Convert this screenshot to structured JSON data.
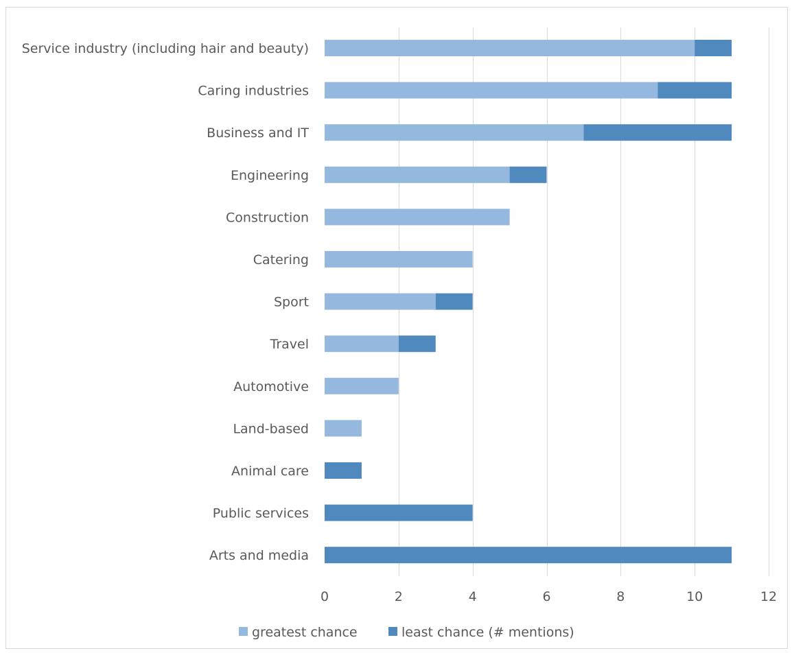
{
  "chart_data": {
    "type": "bar",
    "orientation": "horizontal",
    "stacked": true,
    "categories": [
      "Service industry (including hair and beauty)",
      "Caring industries",
      "Business and IT",
      "Engineering",
      "Construction",
      "Catering",
      "Sport",
      "Travel",
      "Automotive",
      "Land-based",
      "Animal care",
      "Public services",
      "Arts and media"
    ],
    "series": [
      {
        "name": "greatest chance",
        "color": "#95b8df",
        "values": [
          10,
          9,
          7,
          5,
          5,
          4,
          3,
          2,
          2,
          1,
          0,
          0,
          0
        ]
      },
      {
        "name": "least chance (# mentions)",
        "color": "#4f89bd",
        "values": [
          1,
          2,
          4,
          1,
          0,
          0,
          1,
          1,
          0,
          0,
          1,
          4,
          11
        ]
      }
    ],
    "xlim": [
      0,
      12
    ],
    "xticks": [
      0,
      2,
      4,
      6,
      8,
      10,
      12
    ],
    "grid": "vertical",
    "legend": "bottom",
    "title": "",
    "xlabel": "",
    "ylabel": ""
  }
}
